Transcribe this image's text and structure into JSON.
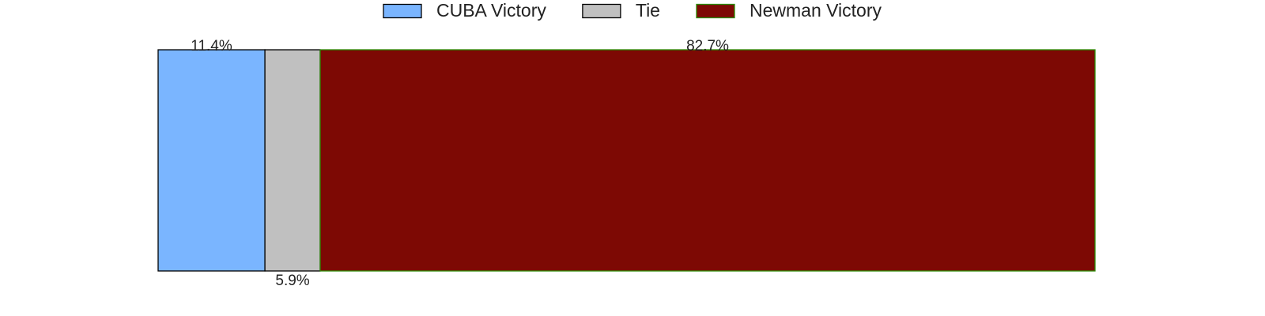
{
  "chart_data": {
    "type": "bar",
    "orientation": "horizontal-stacked",
    "title": "",
    "xlabel": "",
    "ylabel": "",
    "xlim": [
      0,
      100
    ],
    "grid": false,
    "legend_position": "top-center",
    "series": [
      {
        "name": "CUBA Victory",
        "value": 11.4,
        "label": "11.4%",
        "color": "#7ab5ff",
        "edge_color": "#000000",
        "label_side": "top"
      },
      {
        "name": "Tie",
        "value": 5.9,
        "label": "5.9%",
        "color": "#c0c0c0",
        "edge_color": "#000000",
        "label_side": "bottom"
      },
      {
        "name": "Newman Victory",
        "value": 82.7,
        "label": "82.7%",
        "color": "#7d0904",
        "edge_color": "#2a8a00",
        "label_side": "top"
      }
    ]
  }
}
